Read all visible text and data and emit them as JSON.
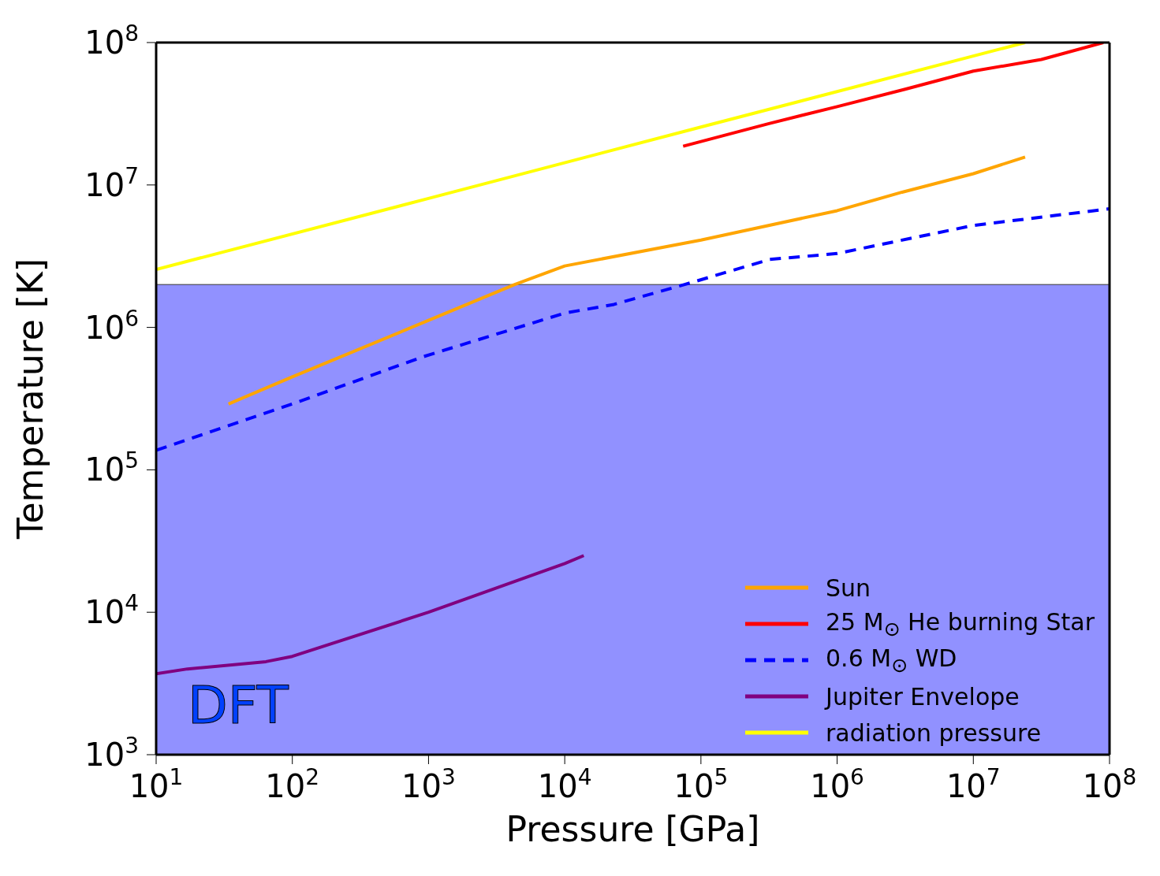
{
  "chart_data": {
    "type": "line",
    "xlabel": "Pressure [GPa]",
    "ylabel": "Temperature [K]",
    "log": "xy",
    "xlim": [
      10,
      100000000
    ],
    "ylim": [
      1000,
      100000000
    ],
    "xticks": [
      {
        "value": 10,
        "label": "10$^{1}$"
      },
      {
        "value": 100,
        "label": "10$^{2}$"
      },
      {
        "value": 1000,
        "label": "10$^{3}$"
      },
      {
        "value": 10000,
        "label": "10$^{4}$"
      },
      {
        "value": 100000,
        "label": "10$^{5}$"
      },
      {
        "value": 1000000,
        "label": "10$^{6}$"
      },
      {
        "value": 10000000,
        "label": "10$^{7}$"
      },
      {
        "value": 100000000,
        "label": "10$^{8}$"
      }
    ],
    "yticks": [
      {
        "value": 1000,
        "label": "10$^{3}$"
      },
      {
        "value": 10000,
        "label": "10$^{4}$"
      },
      {
        "value": 100000,
        "label": "10$^{5}$"
      },
      {
        "value": 1000000,
        "label": "10$^{6}$"
      },
      {
        "value": 10000000,
        "label": "10$^{7}$"
      },
      {
        "value": 100000000,
        "label": "10$^{8}$"
      }
    ],
    "grid": false,
    "legend": "bottom right",
    "bands": [
      {
        "axis": "y",
        "from": 1000,
        "to": 2000000,
        "label": "DFT",
        "color": "#0000ff"
      }
    ],
    "series": [
      {
        "name": "Sun",
        "color": "#ffa500",
        "x": [
          34,
          100,
          1000,
          4300,
          10000,
          100000,
          1000000,
          3000000,
          10000000,
          24000000
        ],
        "values": [
          290000,
          450000,
          1120000,
          2000000,
          2700000,
          4100000,
          6600000,
          8900000,
          12000000,
          15700000
        ]
      },
      {
        "name": "25 M$_{⊙}$ He burning Star",
        "color": "#ff0000",
        "x": [
          74000,
          316000,
          1000000,
          3160000,
          10000000,
          31600000,
          90000000
        ],
        "values": [
          18700000,
          27000000,
          35500000,
          47000000,
          63000000,
          76000000,
          100000000
        ]
      },
      {
        "name": "0.6 M$_{⊙}$ WD",
        "color": "#0000ff",
        "line_style": "dashed",
        "x": [
          10,
          100,
          900,
          10000,
          23000,
          76000,
          320000,
          1000000,
          10000000,
          100000000
        ],
        "values": [
          137000,
          290000,
          620000,
          1260000,
          1450000,
          2000000,
          3000000,
          3300000,
          5200000,
          6800000
        ]
      },
      {
        "name": "Jupiter Envelope",
        "color": "#800080",
        "x": [
          10,
          17,
          64,
          100,
          1000,
          10000,
          13800
        ],
        "values": [
          3700,
          4000,
          4500,
          4900,
          10000,
          22000,
          25000
        ]
      },
      {
        "name": "radiation pressure",
        "color": "#ffff00",
        "x": [
          10,
          1000,
          100000,
          24000000
        ],
        "values": [
          2550000,
          8050000,
          25500000,
          100000000
        ]
      }
    ]
  }
}
